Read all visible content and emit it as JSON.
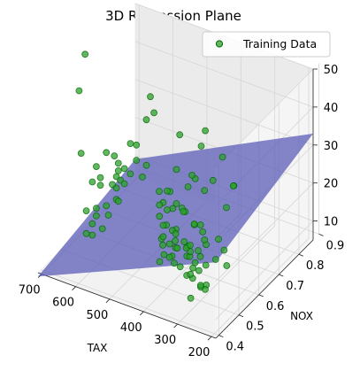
{
  "chart_data": {
    "type": "scatter",
    "title": "3D Regression Plane",
    "xlabel": "TAX",
    "ylabel": "NOX",
    "zlabel": "",
    "xlim": [
      187,
      711
    ],
    "ylim": [
      0.385,
      0.871
    ],
    "zlim": [
      5,
      50
    ],
    "x_ticks": [
      "200",
      "300",
      "400",
      "500",
      "600",
      "700"
    ],
    "y_ticks": [
      "0.4",
      "0.5",
      "0.6",
      "0.7",
      "0.8",
      "0.9"
    ],
    "z_ticks": [
      "10",
      "20",
      "30",
      "40",
      "50"
    ],
    "grid": true,
    "legend": {
      "position": "top-right",
      "entries": [
        "Training Data"
      ]
    },
    "colors": {
      "points": "#2ca02c",
      "point_edge": "#006400",
      "plane": "#5c5cb8",
      "pane": "#f2f2f2",
      "grid": "#d6d6d6"
    },
    "regression_plane": {
      "corners": [
        {
          "x": 187,
          "y": 0.385,
          "z": 25
        },
        {
          "x": 711,
          "y": 0.385,
          "z": 4
        },
        {
          "x": 711,
          "y": 0.871,
          "z": 9
        },
        {
          "x": 187,
          "y": 0.871,
          "z": 33
        }
      ]
    },
    "series": [
      {
        "name": "Training Data",
        "points": [
          {
            "x": 190,
            "y": 0.48,
            "z": 40
          },
          {
            "x": 200,
            "y": 0.46,
            "z": 35
          },
          {
            "x": 215,
            "y": 0.52,
            "z": 37
          },
          {
            "x": 222,
            "y": 0.43,
            "z": 43
          },
          {
            "x": 235,
            "y": 0.5,
            "z": 45
          },
          {
            "x": 195,
            "y": 0.44,
            "z": 25
          },
          {
            "x": 205,
            "y": 0.47,
            "z": 19
          },
          {
            "x": 226,
            "y": 0.45,
            "z": 21
          },
          {
            "x": 247,
            "y": 0.5,
            "z": 23
          },
          {
            "x": 264,
            "y": 0.45,
            "z": 27
          },
          {
            "x": 270,
            "y": 0.4,
            "z": 12
          },
          {
            "x": 224,
            "y": 0.4,
            "z": 17
          },
          {
            "x": 233,
            "y": 0.41,
            "z": 15
          },
          {
            "x": 243,
            "y": 0.43,
            "z": 20
          },
          {
            "x": 254,
            "y": 0.45,
            "z": 24
          },
          {
            "x": 276,
            "y": 0.42,
            "z": 16
          },
          {
            "x": 281,
            "y": 0.43,
            "z": 18
          },
          {
            "x": 287,
            "y": 0.41,
            "z": 22
          },
          {
            "x": 296,
            "y": 0.44,
            "z": 20
          },
          {
            "x": 300,
            "y": 0.5,
            "z": 25
          },
          {
            "x": 300,
            "y": 0.52,
            "z": 33
          },
          {
            "x": 264,
            "y": 0.44,
            "z": 13
          },
          {
            "x": 276,
            "y": 0.46,
            "z": 12
          },
          {
            "x": 287,
            "y": 0.47,
            "z": 15
          },
          {
            "x": 304,
            "y": 0.48,
            "z": 16
          },
          {
            "x": 307,
            "y": 0.5,
            "z": 18
          },
          {
            "x": 300,
            "y": 0.52,
            "z": 20
          },
          {
            "x": 311,
            "y": 0.45,
            "z": 14
          },
          {
            "x": 315,
            "y": 0.46,
            "z": 21
          },
          {
            "x": 330,
            "y": 0.5,
            "z": 17
          },
          {
            "x": 330,
            "y": 0.48,
            "z": 19
          },
          {
            "x": 330,
            "y": 0.52,
            "z": 23
          },
          {
            "x": 330,
            "y": 0.5,
            "z": 11
          },
          {
            "x": 330,
            "y": 0.55,
            "z": 13
          },
          {
            "x": 345,
            "y": 0.45,
            "z": 22
          },
          {
            "x": 345,
            "y": 0.5,
            "z": 27
          },
          {
            "x": 345,
            "y": 0.55,
            "z": 33
          },
          {
            "x": 345,
            "y": 0.58,
            "z": 40
          },
          {
            "x": 345,
            "y": 0.6,
            "z": 43
          },
          {
            "x": 348,
            "y": 0.45,
            "z": 16
          },
          {
            "x": 348,
            "y": 0.5,
            "z": 19
          },
          {
            "x": 348,
            "y": 0.55,
            "z": 21
          },
          {
            "x": 360,
            "y": 0.5,
            "z": 12
          },
          {
            "x": 360,
            "y": 0.55,
            "z": 15
          },
          {
            "x": 362,
            "y": 0.48,
            "z": 18
          },
          {
            "x": 384,
            "y": 0.5,
            "z": 14
          },
          {
            "x": 384,
            "y": 0.52,
            "z": 20
          },
          {
            "x": 384,
            "y": 0.55,
            "z": 24
          },
          {
            "x": 384,
            "y": 0.58,
            "z": 28
          },
          {
            "x": 384,
            "y": 0.6,
            "z": 30
          },
          {
            "x": 391,
            "y": 0.5,
            "z": 17
          },
          {
            "x": 391,
            "y": 0.45,
            "z": 15
          },
          {
            "x": 398,
            "y": 0.55,
            "z": 13
          },
          {
            "x": 398,
            "y": 0.58,
            "z": 21
          },
          {
            "x": 403,
            "y": 0.52,
            "z": 12
          },
          {
            "x": 403,
            "y": 0.48,
            "z": 19
          },
          {
            "x": 411,
            "y": 0.5,
            "z": 16
          },
          {
            "x": 411,
            "y": 0.55,
            "z": 23
          },
          {
            "x": 430,
            "y": 0.55,
            "z": 18
          },
          {
            "x": 430,
            "y": 0.58,
            "z": 15
          },
          {
            "x": 430,
            "y": 0.6,
            "z": 21
          },
          {
            "x": 432,
            "y": 0.6,
            "z": 13
          },
          {
            "x": 437,
            "y": 0.55,
            "z": 10
          },
          {
            "x": 437,
            "y": 0.58,
            "z": 25
          },
          {
            "x": 430,
            "y": 0.6,
            "z": 30
          },
          {
            "x": 432,
            "y": 0.62,
            "z": 38
          },
          {
            "x": 437,
            "y": 0.5,
            "z": 50
          },
          {
            "x": 469,
            "y": 0.6,
            "z": 20
          },
          {
            "x": 469,
            "y": 0.62,
            "z": 17
          },
          {
            "x": 469,
            "y": 0.6,
            "z": 14
          },
          {
            "x": 469,
            "y": 0.58,
            "z": 24
          },
          {
            "x": 469,
            "y": 0.62,
            "z": 22
          },
          {
            "x": 469,
            "y": 0.6,
            "z": 11
          },
          {
            "x": 480,
            "y": 0.6,
            "z": 16
          },
          {
            "x": 480,
            "y": 0.6,
            "z": 19
          },
          {
            "x": 666,
            "y": 0.7,
            "z": 9
          },
          {
            "x": 666,
            "y": 0.7,
            "z": 12
          },
          {
            "x": 666,
            "y": 0.7,
            "z": 15
          },
          {
            "x": 666,
            "y": 0.71,
            "z": 18
          },
          {
            "x": 666,
            "y": 0.72,
            "z": 13
          },
          {
            "x": 666,
            "y": 0.65,
            "z": 10
          },
          {
            "x": 666,
            "y": 0.68,
            "z": 14
          },
          {
            "x": 666,
            "y": 0.74,
            "z": 11
          },
          {
            "x": 666,
            "y": 0.71,
            "z": 8
          },
          {
            "x": 666,
            "y": 0.69,
            "z": 21
          },
          {
            "x": 666,
            "y": 0.66,
            "z": 7
          },
          {
            "x": 666,
            "y": 0.71,
            "z": 16
          },
          {
            "x": 666,
            "y": 0.6,
            "z": 12
          },
          {
            "x": 666,
            "y": 0.58,
            "z": 9
          },
          {
            "x": 666,
            "y": 0.62,
            "z": 17
          },
          {
            "x": 666,
            "y": 0.55,
            "z": 14
          },
          {
            "x": 666,
            "y": 0.6,
            "z": 10
          },
          {
            "x": 666,
            "y": 0.58,
            "z": 20
          },
          {
            "x": 666,
            "y": 0.74,
            "z": 15
          },
          {
            "x": 666,
            "y": 0.77,
            "z": 12
          },
          {
            "x": 666,
            "y": 0.8,
            "z": 18
          },
          {
            "x": 666,
            "y": 0.85,
            "z": 22
          },
          {
            "x": 666,
            "y": 0.87,
            "z": 27
          },
          {
            "x": 666,
            "y": 0.85,
            "z": 10
          },
          {
            "x": 666,
            "y": 0.83,
            "z": 8
          },
          {
            "x": 666,
            "y": 0.8,
            "z": 14
          },
          {
            "x": 666,
            "y": 0.77,
            "z": 20
          },
          {
            "x": 666,
            "y": 0.63,
            "z": 5
          },
          {
            "x": 666,
            "y": 0.58,
            "z": 6
          },
          {
            "x": 666,
            "y": 0.55,
            "z": 8
          },
          {
            "x": 666,
            "y": 0.6,
            "z": 23
          },
          {
            "x": 666,
            "y": 0.62,
            "z": 19
          },
          {
            "x": 666,
            "y": 0.65,
            "z": 24
          },
          {
            "x": 711,
            "y": 0.6,
            "z": 25
          },
          {
            "x": 711,
            "y": 0.59,
            "z": 42
          },
          {
            "x": 711,
            "y": 0.62,
            "z": 50
          }
        ]
      }
    ]
  }
}
